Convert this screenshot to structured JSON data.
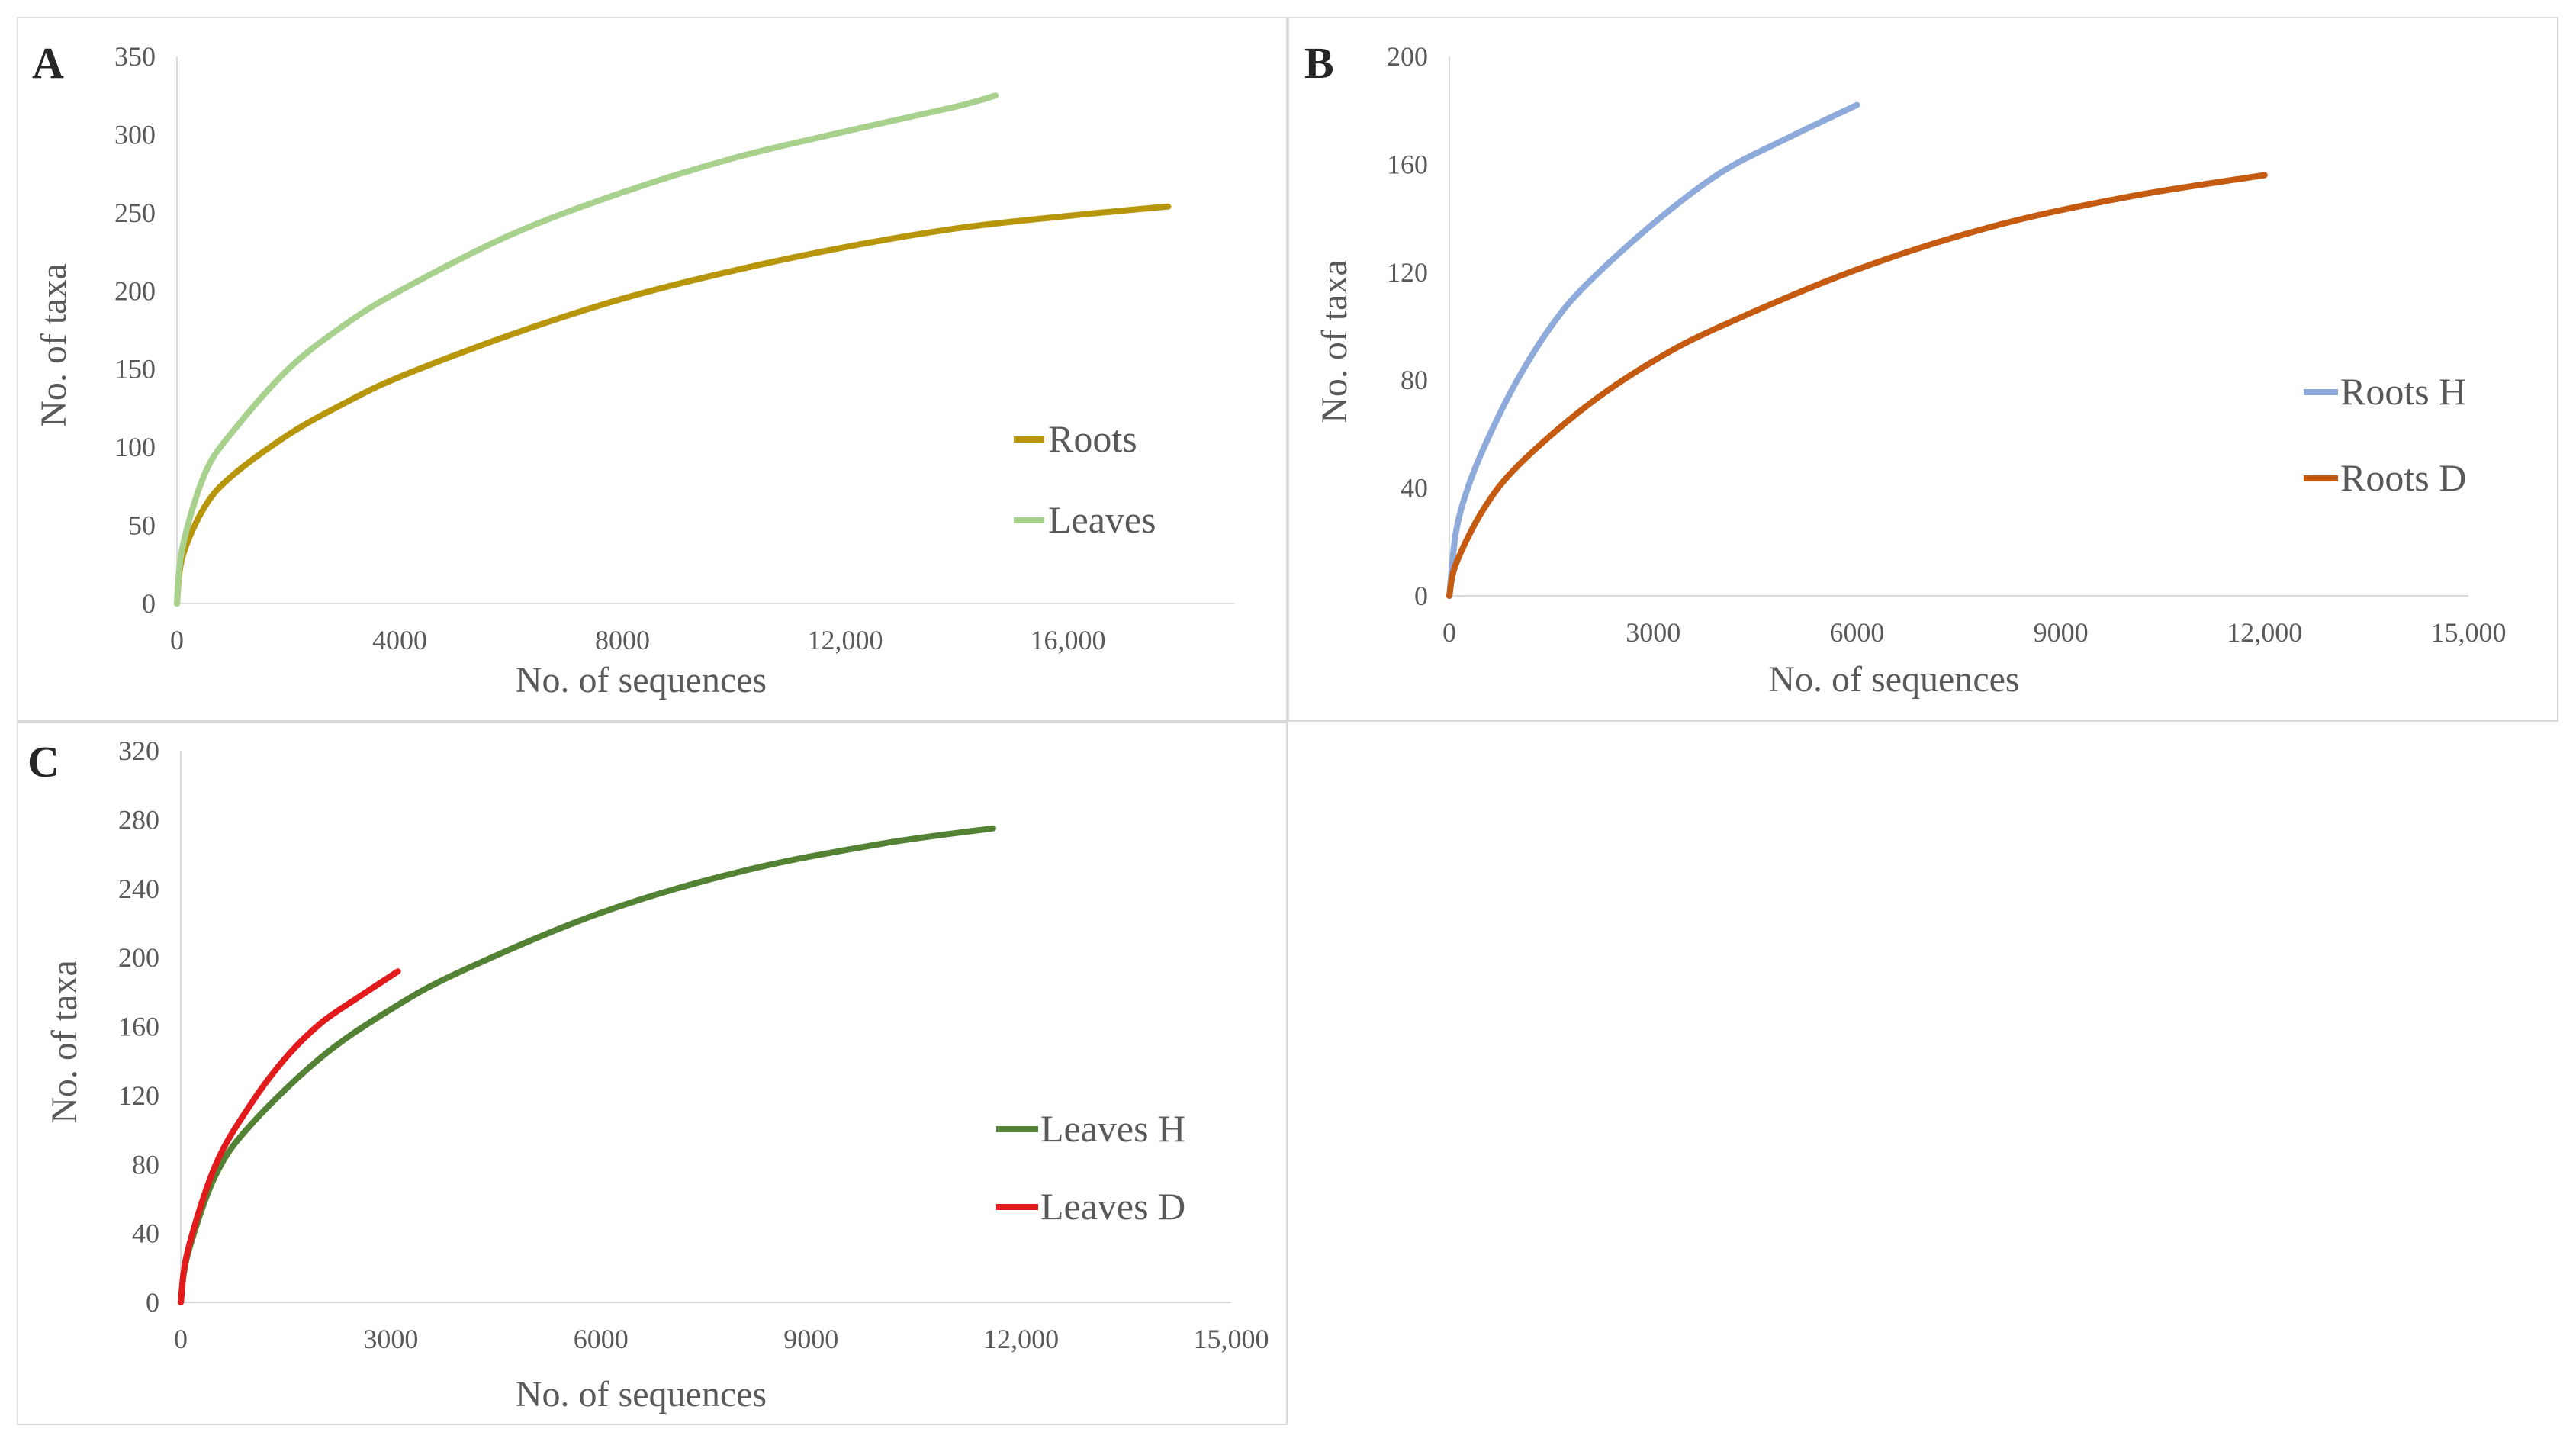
{
  "chart_data": [
    {
      "id": "A",
      "type": "line",
      "panel_label": "A",
      "xlabel": "No. of sequences",
      "ylabel": "No. of taxa",
      "xlim": [
        0,
        19000
      ],
      "ylim": [
        0,
        350
      ],
      "x_ticks": [
        0,
        4000,
        8000,
        12000,
        16000
      ],
      "x_tick_labels": [
        "0",
        "4000",
        "8000",
        "12,000",
        "16,000"
      ],
      "y_ticks": [
        0,
        50,
        100,
        150,
        200,
        250,
        300,
        350
      ],
      "y_tick_labels": [
        "0",
        "50",
        "100",
        "150",
        "200",
        "250",
        "300",
        "350"
      ],
      "grid": false,
      "legend_position": "right",
      "series": [
        {
          "name": "Roots",
          "color": "#b8960c",
          "x": [
            0,
            100,
            500,
            1000,
            2000,
            3000,
            4000,
            6000,
            8000,
            10000,
            12000,
            14000,
            16000,
            17800
          ],
          "y": [
            0,
            30,
            62,
            82,
            108,
            128,
            145,
            172,
            195,
            213,
            228,
            240,
            248,
            254
          ]
        },
        {
          "name": "Leaves",
          "color": "#a9d18e",
          "x": [
            0,
            100,
            500,
            1000,
            2000,
            3000,
            4000,
            6000,
            8000,
            10000,
            12000,
            14000,
            14700
          ],
          "y": [
            0,
            36,
            83,
            110,
            150,
            178,
            200,
            236,
            263,
            285,
            302,
            318,
            325
          ]
        }
      ]
    },
    {
      "id": "B",
      "type": "line",
      "panel_label": "B",
      "xlabel": "No. of sequences",
      "ylabel": "No. of taxa",
      "xlim": [
        0,
        15000
      ],
      "ylim": [
        0,
        200
      ],
      "x_ticks": [
        0,
        3000,
        6000,
        9000,
        12000,
        15000
      ],
      "x_tick_labels": [
        "0",
        "3000",
        "6000",
        "9000",
        "12,000",
        "15,000"
      ],
      "y_ticks": [
        0,
        40,
        80,
        120,
        160,
        200
      ],
      "y_tick_labels": [
        "0",
        "40",
        "80",
        "120",
        "160",
        "200"
      ],
      "grid": false,
      "legend_position": "right",
      "series": [
        {
          "name": "Roots H",
          "color": "#8eaadb",
          "x": [
            0,
            100,
            300,
            600,
            1000,
            1500,
            2000,
            3000,
            4000,
            5000,
            6000
          ],
          "y": [
            0,
            24,
            42,
            60,
            80,
            100,
            115,
            138,
            157,
            170,
            182
          ]
        },
        {
          "name": "Roots D",
          "color": "#c55a11",
          "x": [
            0,
            100,
            500,
            1000,
            2000,
            3000,
            4000,
            6000,
            8000,
            10000,
            12000
          ],
          "y": [
            0,
            12,
            32,
            48,
            70,
            87,
            100,
            121,
            137,
            148,
            156
          ]
        }
      ]
    },
    {
      "id": "C",
      "type": "line",
      "panel_label": "C",
      "xlabel": "No. of sequences",
      "ylabel": "No. of taxa",
      "xlim": [
        0,
        15000
      ],
      "ylim": [
        0,
        320
      ],
      "x_ticks": [
        0,
        3000,
        6000,
        9000,
        12000,
        15000
      ],
      "x_tick_labels": [
        "0",
        "3000",
        "6000",
        "9000",
        "12,000",
        "15,000"
      ],
      "y_ticks": [
        0,
        40,
        80,
        120,
        160,
        200,
        240,
        280,
        320
      ],
      "y_tick_labels": [
        "0",
        "40",
        "80",
        "120",
        "160",
        "200",
        "240",
        "280",
        "320"
      ],
      "grid": false,
      "legend_position": "right",
      "series": [
        {
          "name": "Leaves H",
          "color": "#548235",
          "x": [
            0,
            100,
            500,
            1000,
            2000,
            3000,
            4000,
            6000,
            8000,
            10000,
            11600
          ],
          "y": [
            0,
            28,
            74,
            103,
            142,
            170,
            192,
            226,
            250,
            266,
            275
          ]
        },
        {
          "name": "Leaves D",
          "color": "#e31a1c",
          "x": [
            0,
            100,
            500,
            1000,
            1500,
            2000,
            2500,
            3100
          ],
          "y": [
            0,
            30,
            80,
            115,
            142,
            162,
            176,
            192
          ]
        }
      ]
    }
  ]
}
